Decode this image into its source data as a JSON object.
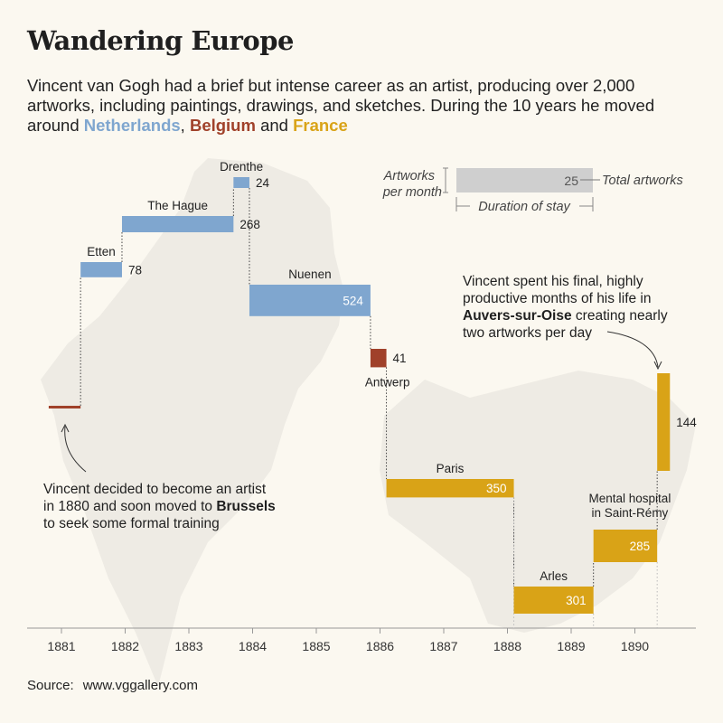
{
  "title": "Wandering Europe",
  "subtitle": {
    "text_before": "Vincent van Gogh had a brief but intense career as an artist, producing over 2,000 artworks, including paintings, drawings, and sketches. During the 10 years he moved around ",
    "netherlands": "Netherlands",
    "sep1": ", ",
    "belgium": "Belgium",
    "sep2": " and ",
    "france": "France"
  },
  "colors": {
    "background": "#fbf8f0",
    "map": "#eeebe4",
    "netherlands": "#7fa6cf",
    "belgium": "#a0412a",
    "france": "#d9a317",
    "legend_bar": "#cfcfcf",
    "axis": "#999999",
    "text": "#1f1f1f"
  },
  "legend": {
    "value": "25",
    "artworks_per_month_1": "Artworks",
    "artworks_per_month_2": "per month",
    "total_artworks": "Total artworks",
    "duration": "Duration of stay"
  },
  "annotations": {
    "brussels_1": "Vincent decided to become an artist",
    "brussels_2": "in 1880 and soon moved to ",
    "brussels_bold": "Brussels",
    "brussels_3": "to seek some formal training",
    "auvers_1": "Vincent spent his final, highly",
    "auvers_2": "productive months of his life in",
    "auvers_bold": "Auvers-sur-Oise",
    "auvers_3": " creating nearly",
    "auvers_4": "two artworks per day"
  },
  "source": {
    "label": "Source:",
    "value": "www.vggallery.com"
  },
  "chart_data": {
    "type": "bar",
    "description": "Each stay drawn as a bar: horizontal extent = duration (years), height = artworks per month, label = total artworks",
    "x_axis": {
      "min": 1880.5,
      "max": 1891,
      "ticks": [
        "1881",
        "1882",
        "1883",
        "1884",
        "1885",
        "1886",
        "1887",
        "1888",
        "1889",
        "1890"
      ]
    },
    "stays": [
      {
        "place": "Brussels",
        "country": "belgium",
        "start": 1880.8,
        "end": 1881.3,
        "per_month": 0.5,
        "total": null,
        "show_place": false
      },
      {
        "place": "Etten",
        "country": "netherlands",
        "start": 1881.3,
        "end": 1881.95,
        "per_month": 7,
        "total": "78",
        "show_place": true
      },
      {
        "place": "The Hague",
        "country": "netherlands",
        "start": 1881.95,
        "end": 1883.7,
        "per_month": 7.5,
        "total": "268",
        "show_place": true
      },
      {
        "place": "Drenthe",
        "country": "netherlands",
        "start": 1883.7,
        "end": 1883.95,
        "per_month": 5,
        "total": "24",
        "show_place": true
      },
      {
        "place": "Nuenen",
        "country": "netherlands",
        "start": 1883.95,
        "end": 1885.85,
        "per_month": 14.5,
        "total": "524",
        "show_place": true
      },
      {
        "place": "Antwerp",
        "country": "belgium",
        "start": 1885.85,
        "end": 1886.1,
        "per_month": 8.5,
        "total": "41",
        "show_place": true
      },
      {
        "place": "Paris",
        "country": "france",
        "start": 1886.1,
        "end": 1888.1,
        "per_month": 8.5,
        "total": "350",
        "show_place": true
      },
      {
        "place": "Arles",
        "country": "france",
        "start": 1888.1,
        "end": 1889.35,
        "per_month": 12.5,
        "total": "301",
        "show_place": true
      },
      {
        "place": "Mental hospital in Saint-Rémy",
        "label_line1": "Mental hospital",
        "label_line2": "in Saint-Rémy",
        "country": "france",
        "start": 1889.35,
        "end": 1890.35,
        "per_month": 15,
        "total": "285",
        "show_place": true
      },
      {
        "place": "Auvers-sur-Oise",
        "country": "france",
        "start": 1890.35,
        "end": 1890.55,
        "per_month": 45,
        "total": "144",
        "show_place": false
      }
    ]
  }
}
